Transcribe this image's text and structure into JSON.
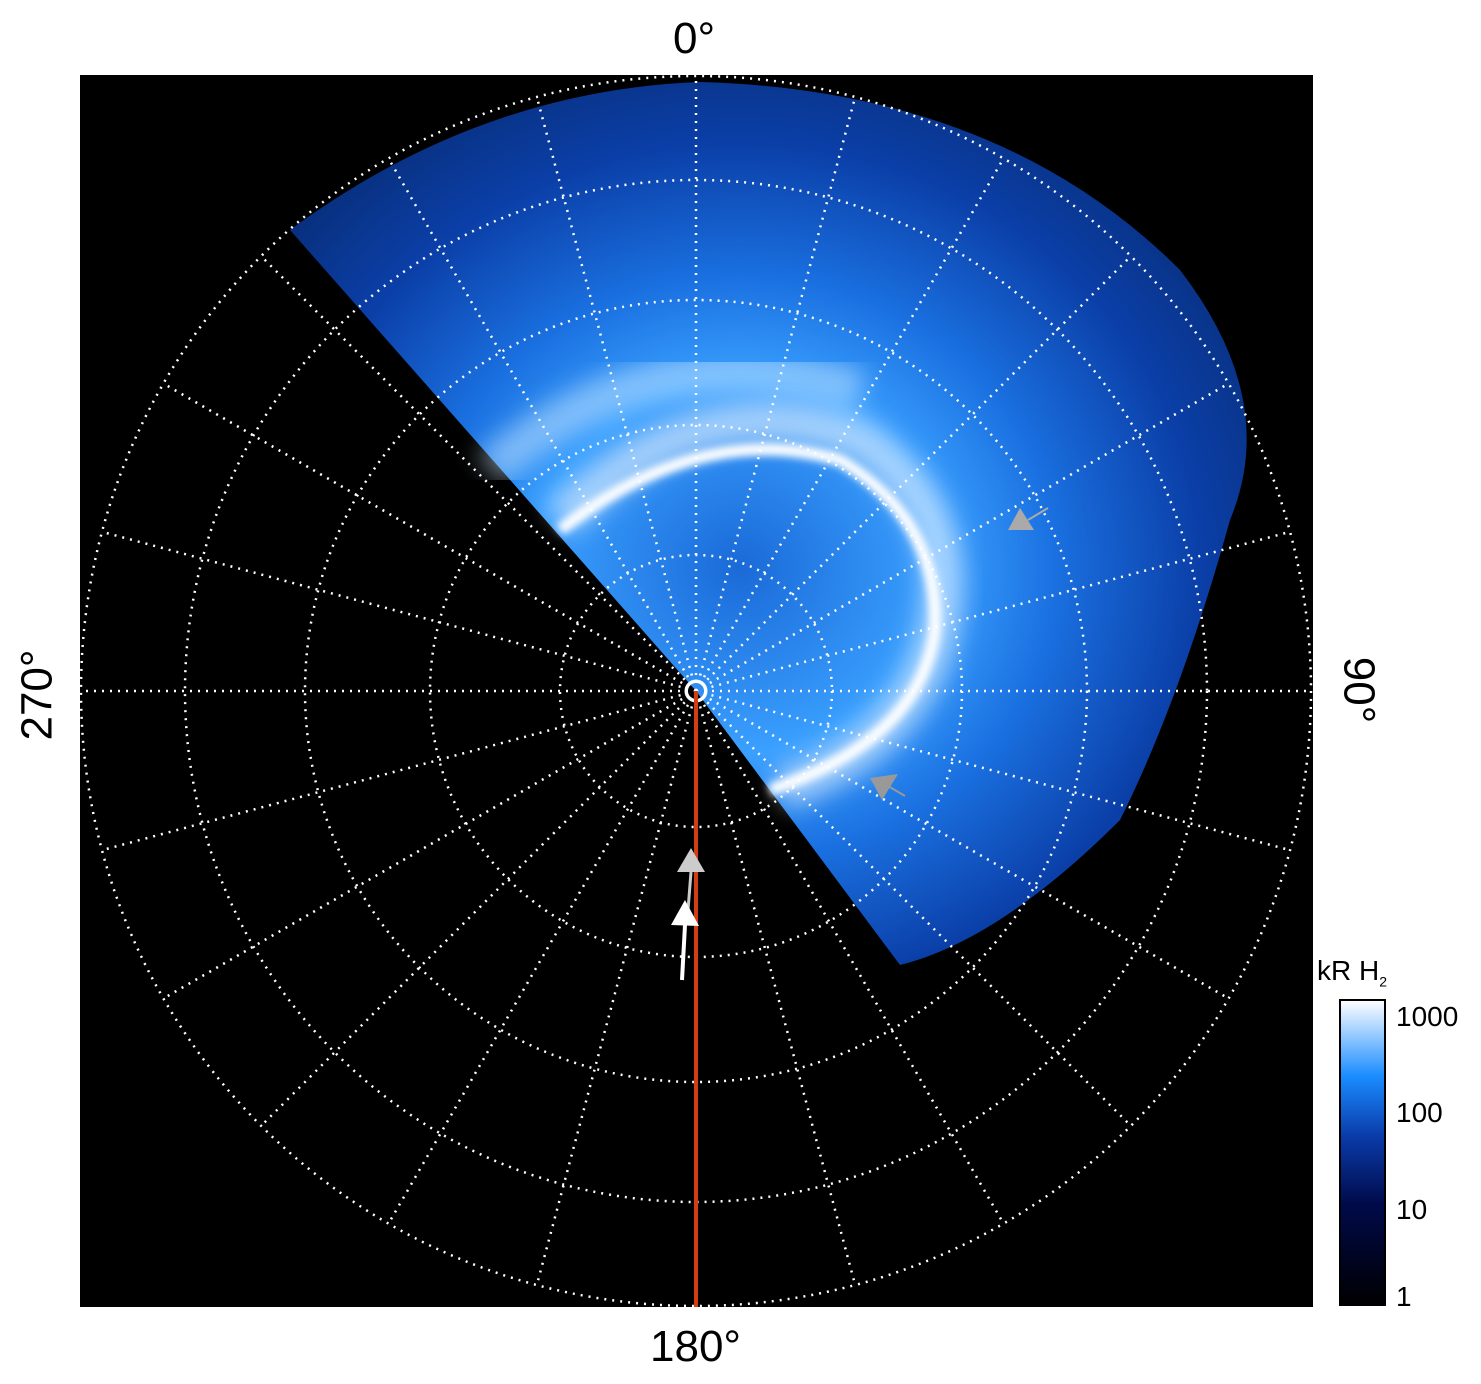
{
  "chart_data": {
    "type": "heatmap",
    "projection": "polar",
    "angle_labels": {
      "top": "0°",
      "right": "90°",
      "bottom": "180°",
      "left": "270°"
    },
    "angular_grid_step_deg": 15,
    "radial_rings": 5,
    "colorbar": {
      "title": "kR H",
      "title_subscript": "2",
      "scale": "log",
      "range": [
        1,
        1000
      ],
      "ticks": [
        "1000",
        "100",
        "10",
        "1"
      ],
      "colors": [
        "#000000",
        "#000a4a",
        "#0a3aa8",
        "#1a8cff",
        "#ffffff"
      ]
    },
    "reference_line": {
      "color": "#d43c14",
      "angle_deg": 180
    }
  }
}
